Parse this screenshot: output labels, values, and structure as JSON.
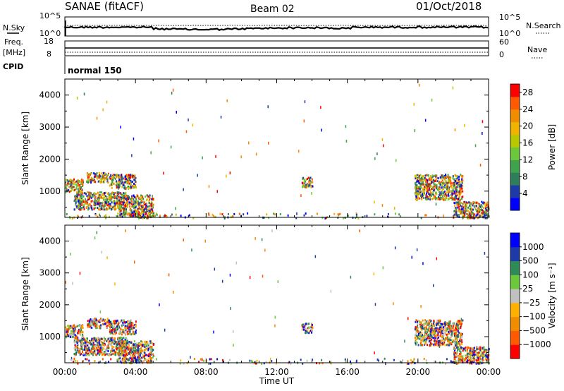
{
  "header": {
    "radar": "SANAE (fitACF)",
    "beam": "Beam 02",
    "date": "01/Oct/2018"
  },
  "params": {
    "nsky_label": "N.Sky",
    "nsearch_label": "N.Search",
    "nsky_ticks": [
      "10^5",
      "10^0"
    ],
    "nsearch_ticks": [
      "10^5",
      "10^0"
    ],
    "freq_label": "Freq.",
    "freq_unit": "[MHz]",
    "freq_ticks": [
      "18",
      "8"
    ],
    "nave_label": "Nave",
    "nave_ticks": [
      "60",
      "0"
    ],
    "cpid_label": "CPID",
    "cpid_text": "normal 150"
  },
  "colors": {
    "power": [
      "#0000ff",
      "#1e3aa8",
      "#2e7d5b",
      "#3fa34d",
      "#6cc83a",
      "#b8c800",
      "#f0b400",
      "#f08c00",
      "#ff5a00",
      "#ff0000"
    ],
    "velocity": [
      "#ff0000",
      "#ff5a00",
      "#f08c00",
      "#ffb000",
      "#c0c0c0",
      "#6cc83a",
      "#2e8b57",
      "#1e3aa8",
      "#0000ff"
    ]
  },
  "chart_data": [
    {
      "type": "heatmap",
      "name": "power",
      "ylabel": "Slant Range [km]",
      "ylim": [
        180,
        4500
      ],
      "yticks": [
        1000,
        2000,
        3000,
        4000
      ],
      "xlim": [
        0,
        24
      ],
      "xticks": [
        "00:00",
        "04:00",
        "08:00",
        "12:00",
        "16:00",
        "20:00",
        "00:00"
      ],
      "colorbar_label": "Power [dB]",
      "colorbar_ticks": [
        "4",
        "8",
        "12",
        "16",
        "20",
        "24",
        "28"
      ],
      "colorbar_range": [
        0,
        30
      ],
      "clusters": [
        {
          "t0": 0.0,
          "t1": 1.0,
          "r0": 1000,
          "r1": 1400
        },
        {
          "t0": 0.5,
          "t1": 3.5,
          "r0": 450,
          "r1": 1000
        },
        {
          "t0": 1.2,
          "t1": 2.5,
          "r0": 1300,
          "r1": 1600
        },
        {
          "t0": 2.5,
          "t1": 4.0,
          "r0": 1100,
          "r1": 1550
        },
        {
          "t0": 3.0,
          "t1": 5.0,
          "r0": 200,
          "r1": 900
        },
        {
          "t0": 13.4,
          "t1": 14.0,
          "r0": 1150,
          "r1": 1450
        },
        {
          "t0": 19.8,
          "t1": 22.5,
          "r0": 750,
          "r1": 1550
        },
        {
          "t0": 22.0,
          "t1": 24.0,
          "r0": 180,
          "r1": 700
        }
      ]
    },
    {
      "type": "heatmap",
      "name": "velocity",
      "ylabel": "Slant Range [km]",
      "ylim": [
        180,
        4500
      ],
      "yticks": [
        1000,
        2000,
        3000,
        4000
      ],
      "xlim": [
        0,
        24
      ],
      "xticks": [
        "00:00",
        "04:00",
        "08:00",
        "12:00",
        "16:00",
        "20:00",
        "00:00"
      ],
      "xlabel": "Time UT",
      "colorbar_label": "Velocity [m s⁻¹]",
      "colorbar_ticks": [
        "1000",
        "500",
        "100",
        "25",
        "−25",
        "−100",
        "−500",
        "−1000"
      ],
      "clusters": [
        {
          "t0": 0.0,
          "t1": 1.0,
          "r0": 1000,
          "r1": 1400
        },
        {
          "t0": 0.5,
          "t1": 3.5,
          "r0": 450,
          "r1": 1000
        },
        {
          "t0": 1.2,
          "t1": 2.5,
          "r0": 1300,
          "r1": 1600
        },
        {
          "t0": 2.5,
          "t1": 4.0,
          "r0": 1100,
          "r1": 1550
        },
        {
          "t0": 3.0,
          "t1": 5.0,
          "r0": 200,
          "r1": 900
        },
        {
          "t0": 13.4,
          "t1": 14.0,
          "r0": 1150,
          "r1": 1450
        },
        {
          "t0": 19.8,
          "t1": 22.5,
          "r0": 750,
          "r1": 1550
        },
        {
          "t0": 22.0,
          "t1": 24.0,
          "r0": 180,
          "r1": 700
        }
      ]
    }
  ]
}
